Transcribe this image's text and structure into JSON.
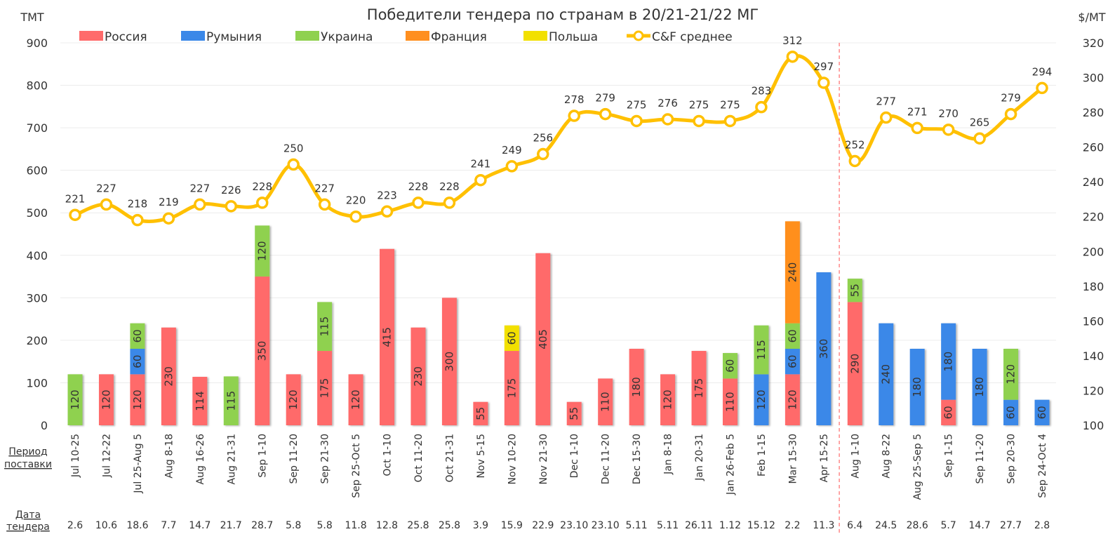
{
  "chart_data": {
    "type": "bar",
    "title": "Победители тендера по странам в 20/21-21/22 МГ",
    "ylabel_left": "ТМТ",
    "ylabel_right": "$/МТ",
    "ylim_left": [
      0,
      900
    ],
    "yticks_left": [
      0,
      100,
      200,
      300,
      400,
      500,
      600,
      700,
      800,
      900
    ],
    "ylim_right": [
      100,
      320
    ],
    "yticks_right": [
      100,
      120,
      140,
      160,
      180,
      200,
      220,
      240,
      260,
      280,
      300,
      320
    ],
    "grid": true,
    "legend_position": "top",
    "row_headers": {
      "period": "Период поставки",
      "date": "Дата тендера"
    },
    "categories": [
      "Jul 10-25",
      "Jul 12-22",
      "Jul 25-Aug 5",
      "Aug 8-18",
      "Aug 16-26",
      "Aug 21-31",
      "Sep 1-10",
      "Sep 11-20",
      "Sep 21-30",
      "Sep 25-Oct 5",
      "Oct 1-10",
      "Oct 11-20",
      "Oct 21-31",
      "Nov 5-15",
      "Nov 10-20",
      "Nov 21-30",
      "Dec 1-10",
      "Dec 11-20",
      "Dec 15-30",
      "Jan 8-18",
      "Jan 20-31",
      "Jan 26-Feb 5",
      "Feb 1-15",
      "Mar 15-30",
      "Apr 15-25",
      "Aug 1-10",
      "Aug 8-22",
      "Aug 25-Sep 5",
      "Sep 1-15",
      "Sep 11-20",
      "Sep 20-30",
      "Sep 24-Oct 4"
    ],
    "tender_dates": [
      "2.6",
      "10.6",
      "18.6",
      "7.7",
      "14.7",
      "21.7",
      "28.7",
      "5.8",
      "5.8",
      "11.8",
      "12.8",
      "25.8",
      "25.8",
      "3.9",
      "15.9",
      "22.9",
      "23.10",
      "23.10",
      "5.11",
      "5.11",
      "26.11",
      "1.12",
      "15.12",
      "2.2",
      "11.3",
      "6.4",
      "24.5",
      "28.6",
      "5.7",
      "14.7",
      "27.7",
      "2.8"
    ],
    "season_divider_after_index": 24,
    "series": [
      {
        "name": "Россия",
        "color": "#ff6b6b",
        "values": [
          0,
          120,
          120,
          230,
          114,
          0,
          350,
          120,
          175,
          120,
          415,
          230,
          300,
          55,
          175,
          405,
          55,
          110,
          180,
          120,
          175,
          110,
          0,
          120,
          0,
          290,
          0,
          0,
          60,
          0,
          0,
          0
        ]
      },
      {
        "name": "Румыния",
        "color": "#3b88e8",
        "values": [
          0,
          0,
          60,
          0,
          0,
          0,
          0,
          0,
          0,
          0,
          0,
          0,
          0,
          0,
          0,
          0,
          0,
          0,
          0,
          0,
          0,
          0,
          120,
          60,
          360,
          0,
          240,
          180,
          180,
          180,
          60,
          60
        ]
      },
      {
        "name": "Украина",
        "color": "#8fd14f",
        "values": [
          120,
          0,
          60,
          0,
          0,
          115,
          120,
          0,
          115,
          0,
          0,
          0,
          0,
          0,
          0,
          0,
          0,
          0,
          0,
          0,
          0,
          60,
          115,
          60,
          0,
          55,
          0,
          0,
          0,
          0,
          120,
          0
        ]
      },
      {
        "name": "Франция",
        "color": "#ff8f1f",
        "values": [
          0,
          0,
          0,
          0,
          0,
          0,
          0,
          0,
          0,
          0,
          0,
          0,
          0,
          0,
          0,
          0,
          0,
          0,
          0,
          0,
          0,
          0,
          0,
          240,
          0,
          0,
          0,
          0,
          0,
          0,
          0,
          0
        ]
      },
      {
        "name": "Польша",
        "color": "#f2e000",
        "values": [
          0,
          0,
          0,
          0,
          0,
          0,
          0,
          0,
          0,
          0,
          0,
          0,
          0,
          0,
          60,
          0,
          0,
          0,
          0,
          0,
          0,
          0,
          0,
          0,
          0,
          0,
          0,
          0,
          0,
          0,
          0,
          0
        ]
      }
    ],
    "line_series": {
      "name": "C&F среднее",
      "color": "#ffc000",
      "axis": "right",
      "values": [
        221,
        227,
        218,
        219,
        227,
        226,
        228,
        250,
        227,
        220,
        223,
        228,
        228,
        241,
        249,
        256,
        278,
        279,
        275,
        276,
        275,
        275,
        283,
        312,
        297,
        252,
        277,
        271,
        270,
        265,
        279,
        294
      ]
    }
  }
}
